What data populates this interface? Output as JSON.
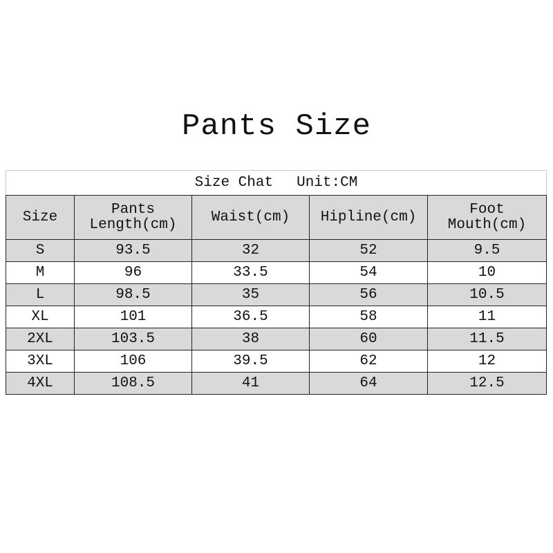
{
  "title": "Pants Size",
  "table": {
    "caption_left": "Size Chat",
    "caption_right": "Unit:CM",
    "headers": [
      "Size",
      "Pants\nLength(cm)",
      "Waist(cm)",
      "Hipline(cm)",
      "Foot\nMouth(cm)"
    ],
    "rows": [
      [
        "S",
        "93.5",
        "32",
        "52",
        "9.5"
      ],
      [
        "M",
        "96",
        "33.5",
        "54",
        "10"
      ],
      [
        "L",
        "98.5",
        "35",
        "56",
        "10.5"
      ],
      [
        "XL",
        "101",
        "36.5",
        "58",
        "11"
      ],
      [
        "2XL",
        "103.5",
        "38",
        "60",
        "11.5"
      ],
      [
        "3XL",
        "106",
        "39.5",
        "62",
        "12"
      ],
      [
        "4XL",
        "108.5",
        "41",
        "64",
        "12.5"
      ]
    ],
    "row_colors": [
      "#d9d9d9",
      "#ffffff"
    ]
  }
}
